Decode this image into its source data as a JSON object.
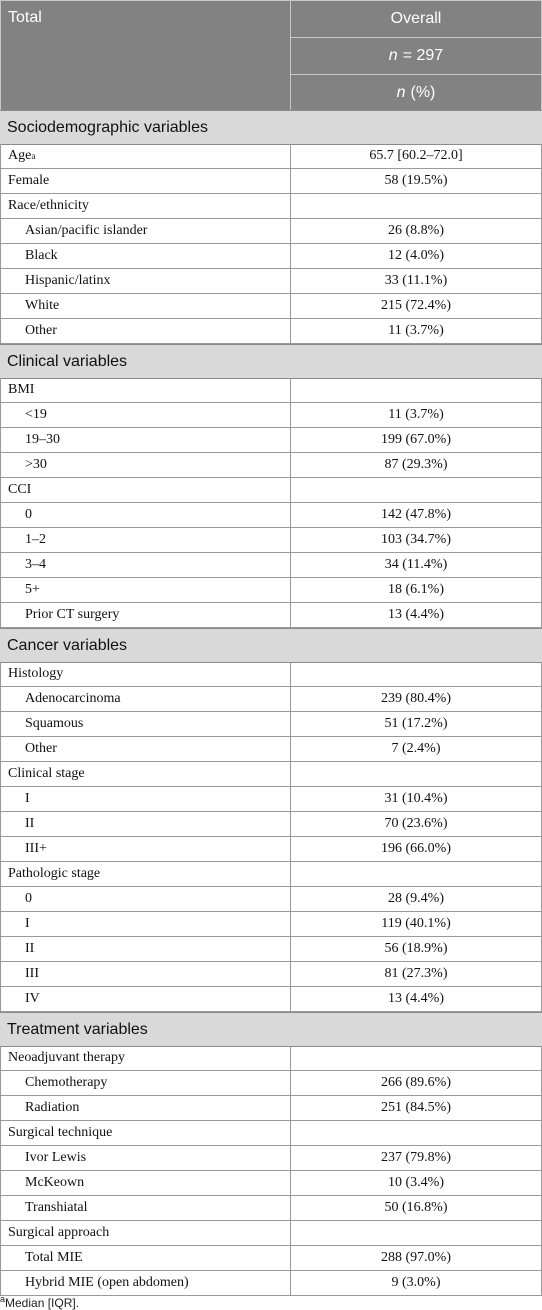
{
  "header": {
    "stub": "Total",
    "column": "Overall",
    "n_symbol": "n",
    "n_value": "= 297",
    "stat_symbol": "n",
    "stat_unit": "(%)"
  },
  "sections": [
    {
      "title": "Sociodemographic variables",
      "rows": [
        {
          "label": "Age",
          "note": "a",
          "value": "65.7 [60.2–72.0]"
        },
        {
          "label": "Female",
          "value": "58 (19.5%)"
        },
        {
          "label": "Race/ethnicity",
          "items": [
            {
              "label": "Asian/pacific islander",
              "value": "26 (8.8%)"
            },
            {
              "label": "Black",
              "value": "12 (4.0%)"
            },
            {
              "label": "Hispanic/latinx",
              "value": "33 (11.1%)"
            },
            {
              "label": "White",
              "value": "215 (72.4%)"
            },
            {
              "label": "Other",
              "value": "11 (3.7%)"
            }
          ]
        }
      ]
    },
    {
      "title": "Clinical variables",
      "rows": [
        {
          "label": "BMI",
          "items": [
            {
              "label": "<19",
              "value": "11 (3.7%)"
            },
            {
              "label": "19–30",
              "value": "199 (67.0%)"
            },
            {
              "label": ">30",
              "value": "87 (29.3%)"
            }
          ]
        },
        {
          "label": "CCI",
          "items": [
            {
              "label": "0",
              "value": "142 (47.8%)"
            },
            {
              "label": "1–2",
              "value": "103 (34.7%)"
            },
            {
              "label": "3–4",
              "value": "34 (11.4%)"
            },
            {
              "label": "5+",
              "value": "18 (6.1%)"
            },
            {
              "label": "Prior CT surgery",
              "value": "13 (4.4%)"
            }
          ]
        }
      ]
    },
    {
      "title": "Cancer variables",
      "rows": [
        {
          "label": "Histology",
          "items": [
            {
              "label": "Adenocarcinoma",
              "value": "239 (80.4%)"
            },
            {
              "label": "Squamous",
              "value": "51 (17.2%)"
            },
            {
              "label": "Other",
              "value": "7 (2.4%)"
            }
          ]
        },
        {
          "label": "Clinical stage",
          "items": [
            {
              "label": "I",
              "value": "31 (10.4%)"
            },
            {
              "label": "II",
              "value": "70 (23.6%)"
            },
            {
              "label": "III+",
              "value": "196 (66.0%)"
            }
          ]
        },
        {
          "label": "Pathologic stage",
          "items": [
            {
              "label": "0",
              "value": "28 (9.4%)"
            },
            {
              "label": "I",
              "value": "119 (40.1%)"
            },
            {
              "label": "II",
              "value": "56 (18.9%)"
            },
            {
              "label": "III",
              "value": "81 (27.3%)"
            },
            {
              "label": "IV",
              "value": "13 (4.4%)"
            }
          ]
        }
      ]
    },
    {
      "title": "Treatment variables",
      "rows": [
        {
          "label": "Neoadjuvant therapy",
          "items": [
            {
              "label": "Chemotherapy",
              "value": "266 (89.6%)"
            },
            {
              "label": "Radiation",
              "value": "251 (84.5%)"
            }
          ]
        },
        {
          "label": "Surgical technique",
          "items": [
            {
              "label": "Ivor Lewis",
              "value": "237 (79.8%)"
            },
            {
              "label": "McKeown",
              "value": "10 (3.4%)"
            },
            {
              "label": "Transhiatal",
              "value": "50 (16.8%)"
            }
          ]
        },
        {
          "label": "Surgical approach",
          "items": [
            {
              "label": "Total MIE",
              "value": "288 (97.0%)"
            },
            {
              "label": "Hybrid MIE (open abdomen)",
              "value": "9 (3.0%)"
            }
          ]
        }
      ]
    }
  ],
  "footnote": {
    "mark": "a",
    "text": "Median [IQR]."
  }
}
